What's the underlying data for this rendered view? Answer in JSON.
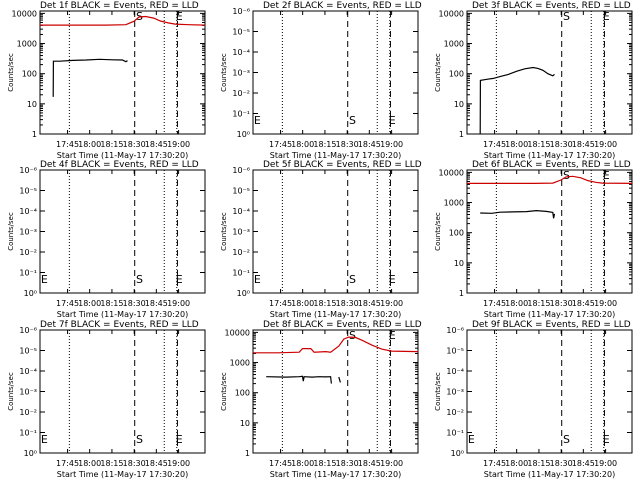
{
  "chart_data": [
    {
      "type": "line",
      "title": "Det 1f BLACK = Events, RED = LLD",
      "xlabel": "Start Time (11-May-17 17:30:20)",
      "ylabel": "Counts/sec",
      "x_tick_labels": [
        "17:45",
        "18:00",
        "18:15",
        "18:30",
        "18:45",
        "19:00"
      ],
      "y_tick_labels": [
        "1",
        "10",
        "100",
        "1000",
        "10000"
      ],
      "ylim": [
        1,
        12000
      ],
      "log_y": true,
      "markers": [
        "S",
        "E"
      ],
      "series": [
        {
          "color": "#000000",
          "points": [
            [
              0.08,
              17
            ],
            [
              0.081,
              260
            ],
            [
              0.12,
              260
            ],
            [
              0.2,
              275
            ],
            [
              0.28,
              285
            ],
            [
              0.36,
              300
            ],
            [
              0.44,
              290
            ],
            [
              0.5,
              285
            ],
            [
              0.52,
              250
            ],
            [
              0.53,
              270
            ]
          ]
        },
        {
          "color": "#cc0000",
          "points": [
            [
              0,
              4100
            ],
            [
              0.2,
              4100
            ],
            [
              0.4,
              4100
            ],
            [
              0.52,
              4200
            ],
            [
              0.57,
              5500
            ],
            [
              0.6,
              7600
            ],
            [
              0.64,
              7900
            ],
            [
              0.69,
              7000
            ],
            [
              0.73,
              5600
            ],
            [
              0.78,
              4800
            ],
            [
              0.82,
              4400
            ],
            [
              0.9,
              4200
            ],
            [
              1,
              4100
            ]
          ]
        }
      ]
    },
    {
      "type": "line",
      "title": "Det 2f BLACK = Events, RED = LLD",
      "xlabel": "Start Time (11-May-17 17:30:20)",
      "ylabel": "Counts/sec",
      "x_tick_labels": [
        "17:45",
        "18:00",
        "18:15",
        "18:30",
        "18:45",
        "19:00"
      ],
      "y_tick_labels": [
        "10⁰",
        "10⁻¹",
        "10⁻²",
        "10⁻³",
        "10⁻⁴",
        "10⁻⁵",
        "10⁻⁶"
      ],
      "markers": [
        "E",
        "S",
        "E"
      ],
      "series": []
    },
    {
      "type": "line",
      "title": "Det 3f BLACK = Events, RED = LLD",
      "xlabel": "Start Time (11-May-17 17:30:20)",
      "ylabel": "Counts/sec",
      "x_tick_labels": [
        "17:45",
        "18:00",
        "18:15",
        "18:30",
        "18:45",
        "19:00"
      ],
      "y_tick_labels": [
        "1",
        "10",
        "100",
        "1000",
        "10000"
      ],
      "ylim": [
        1,
        12000
      ],
      "log_y": true,
      "markers": [
        "S",
        "E"
      ],
      "series": [
        {
          "color": "#000000",
          "points": [
            [
              0.08,
              1
            ],
            [
              0.081,
              60
            ],
            [
              0.12,
              65
            ],
            [
              0.16,
              70
            ],
            [
              0.2,
              80
            ],
            [
              0.25,
              95
            ],
            [
              0.3,
              120
            ],
            [
              0.35,
              145
            ],
            [
              0.4,
              160
            ],
            [
              0.43,
              150
            ],
            [
              0.46,
              130
            ],
            [
              0.49,
              100
            ],
            [
              0.52,
              85
            ],
            [
              0.53,
              95
            ]
          ]
        }
      ]
    },
    {
      "type": "line",
      "title": "Det 4f BLACK = Events, RED = LLD",
      "xlabel": "Start Time (11-May-17 17:30:20)",
      "ylabel": "Counts/sec",
      "x_tick_labels": [
        "17:45",
        "18:00",
        "18:15",
        "18:30",
        "18:45",
        "19:00"
      ],
      "y_tick_labels": [
        "10⁰",
        "10⁻¹",
        "10⁻²",
        "10⁻³",
        "10⁻⁴",
        "10⁻⁵",
        "10⁻⁶"
      ],
      "markers": [
        "E",
        "S",
        "E"
      ],
      "series": []
    },
    {
      "type": "line",
      "title": "Det 5f BLACK = Events, RED = LLD",
      "xlabel": "Start Time (11-May-17 17:30:20)",
      "ylabel": "Counts/sec",
      "x_tick_labels": [
        "17:45",
        "18:00",
        "18:15",
        "18:30",
        "18:45",
        "19:00"
      ],
      "y_tick_labels": [
        "10⁰",
        "10⁻¹",
        "10⁻²",
        "10⁻³",
        "10⁻⁴",
        "10⁻⁵",
        "10⁻⁶"
      ],
      "markers": [
        "E",
        "S",
        "E"
      ],
      "series": []
    },
    {
      "type": "line",
      "title": "Det 6f BLACK = Events, RED = LLD",
      "xlabel": "Start Time (11-May-17 17:30:20)",
      "ylabel": "Counts/sec",
      "x_tick_labels": [
        "17:45",
        "18:00",
        "18:15",
        "18:30",
        "18:45",
        "19:00"
      ],
      "y_tick_labels": [
        "1",
        "10",
        "100",
        "1000",
        "10000"
      ],
      "ylim": [
        1,
        12000
      ],
      "log_y": true,
      "markers": [
        "S",
        "E"
      ],
      "series": [
        {
          "color": "#000000",
          "points": [
            [
              0.08,
              450
            ],
            [
              0.15,
              440
            ],
            [
              0.2,
              480
            ],
            [
              0.28,
              490
            ],
            [
              0.36,
              500
            ],
            [
              0.42,
              540
            ],
            [
              0.48,
              510
            ],
            [
              0.52,
              470
            ],
            [
              0.525,
              300
            ],
            [
              0.53,
              420
            ]
          ]
        },
        {
          "color": "#cc0000",
          "points": [
            [
              0,
              4300
            ],
            [
              0.2,
              4300
            ],
            [
              0.4,
              4300
            ],
            [
              0.52,
              4400
            ],
            [
              0.57,
              5600
            ],
            [
              0.6,
              7100
            ],
            [
              0.64,
              7400
            ],
            [
              0.69,
              6600
            ],
            [
              0.73,
              5400
            ],
            [
              0.78,
              4700
            ],
            [
              0.82,
              4400
            ],
            [
              1,
              4300
            ]
          ]
        }
      ]
    },
    {
      "type": "line",
      "title": "Det 7f BLACK = Events, RED = LLD",
      "xlabel": "Start Time (11-May-17 17:30:20)",
      "ylabel": "Counts/sec",
      "x_tick_labels": [
        "17:45",
        "18:00",
        "18:15",
        "18:30",
        "18:45",
        "19:00"
      ],
      "y_tick_labels": [
        "10⁰",
        "10⁻¹",
        "10⁻²",
        "10⁻³",
        "10⁻⁴",
        "10⁻⁵",
        "10⁻⁶"
      ],
      "markers": [
        "E",
        "S",
        "E"
      ],
      "series": []
    },
    {
      "type": "line",
      "title": "Det 8f BLACK = Events, RED = LLD",
      "xlabel": "Start Time (11-May-17 17:30:20)",
      "ylabel": "Counts/sec",
      "x_tick_labels": [
        "17:45",
        "18:00",
        "18:15",
        "18:30",
        "18:45",
        "19:00"
      ],
      "y_tick_labels": [
        "1",
        "10",
        "100",
        "1000",
        "10000"
      ],
      "ylim": [
        1,
        12000
      ],
      "log_y": true,
      "markers": [
        "S",
        "E"
      ],
      "series": [
        {
          "color": "#000000",
          "points": [
            [
              0.08,
              340
            ],
            [
              0.2,
              330
            ],
            [
              0.28,
              340
            ],
            [
              0.3,
              350
            ],
            [
              0.305,
              240
            ],
            [
              0.31,
              340
            ],
            [
              0.36,
              330
            ],
            [
              0.4,
              340
            ],
            [
              0.44,
              335
            ],
            [
              0.47,
              340
            ],
            [
              0.475,
              200
            ]
          ]
        },
        {
          "color": "#000000",
          "points": [
            [
              0.52,
              330
            ],
            [
              0.53,
              220
            ]
          ]
        },
        {
          "color": "#cc0000",
          "points": [
            [
              0,
              2100
            ],
            [
              0.15,
              2100
            ],
            [
              0.28,
              2200
            ],
            [
              0.3,
              2900
            ],
            [
              0.35,
              2900
            ],
            [
              0.37,
              2200
            ],
            [
              0.44,
              2300
            ],
            [
              0.47,
              2200
            ],
            [
              0.52,
              3500
            ],
            [
              0.55,
              6000
            ],
            [
              0.58,
              7000
            ],
            [
              0.62,
              6800
            ],
            [
              0.66,
              5500
            ],
            [
              0.72,
              3800
            ],
            [
              0.78,
              2800
            ],
            [
              0.84,
              2400
            ],
            [
              1,
              2300
            ]
          ]
        }
      ]
    },
    {
      "type": "line",
      "title": "Det 9f BLACK = Events, RED = LLD",
      "xlabel": "Start Time (11-May-17 17:30:20)",
      "ylabel": "Counts/sec",
      "x_tick_labels": [
        "17:45",
        "18:00",
        "18:15",
        "18:30",
        "18:45",
        "19:00"
      ],
      "y_tick_labels": [
        "10⁰",
        "10⁻¹",
        "10⁻²",
        "10⁻³",
        "10⁻⁴",
        "10⁻⁵",
        "10⁻⁶"
      ],
      "markers": [
        "E",
        "S",
        "E"
      ],
      "series": []
    }
  ]
}
